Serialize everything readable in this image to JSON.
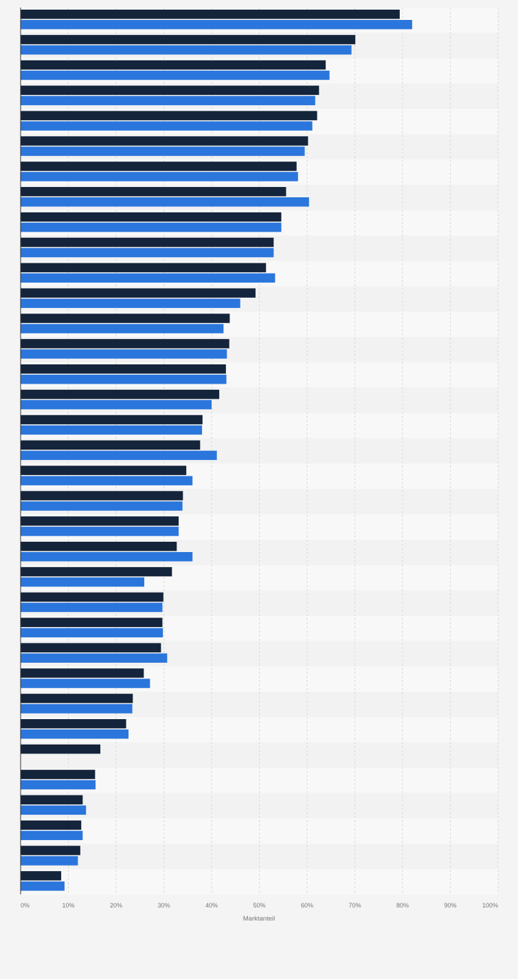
{
  "chart_data": {
    "type": "bar",
    "orientation": "horizontal",
    "categories": [
      "",
      "",
      "",
      "",
      "",
      "",
      "",
      "",
      "",
      "",
      "",
      "",
      "",
      "",
      "",
      "",
      "",
      "",
      "",
      "",
      "",
      "",
      "",
      "",
      "",
      "",
      "",
      "",
      "",
      "",
      "",
      "",
      "",
      "",
      ""
    ],
    "series": [
      {
        "color": "#14243b",
        "values": [
          79.4,
          70.1,
          63.9,
          62.5,
          62.1,
          60.2,
          57.8,
          55.6,
          54.6,
          53.0,
          51.4,
          49.2,
          43.8,
          43.7,
          43.0,
          41.6,
          38.1,
          37.6,
          34.7,
          34.0,
          33.1,
          32.7,
          31.7,
          29.9,
          29.7,
          29.4,
          25.8,
          23.5,
          22.1,
          16.7,
          15.6,
          13.0,
          12.7,
          12.5,
          8.5
        ]
      },
      {
        "color": "#2b76dc",
        "values": [
          82.0,
          69.3,
          64.7,
          61.7,
          61.1,
          59.5,
          58.1,
          60.4,
          54.6,
          53.0,
          53.3,
          46.0,
          42.5,
          43.2,
          43.1,
          40.0,
          38.0,
          41.1,
          36.0,
          33.9,
          33.1,
          36.0,
          25.9,
          29.7,
          29.8,
          30.7,
          27.1,
          23.4,
          22.6,
          null,
          15.7,
          13.7,
          13.0,
          12.0,
          9.2
        ]
      }
    ],
    "xlabel": "Marktanteil",
    "xlim": [
      0,
      100
    ],
    "ticks": [
      "0%",
      "10%",
      "20%",
      "30%",
      "40%",
      "50%",
      "60%",
      "70%",
      "80%",
      "90%",
      "100%"
    ],
    "grid": true,
    "legend": "none",
    "colors": {
      "page_background": "#f4f4f4",
      "band_light": "#f8f8f8",
      "band_dark": "#f2f2f2",
      "grid": "#d8d8d8",
      "axis": "#333333",
      "tick_text": "#777777"
    }
  }
}
